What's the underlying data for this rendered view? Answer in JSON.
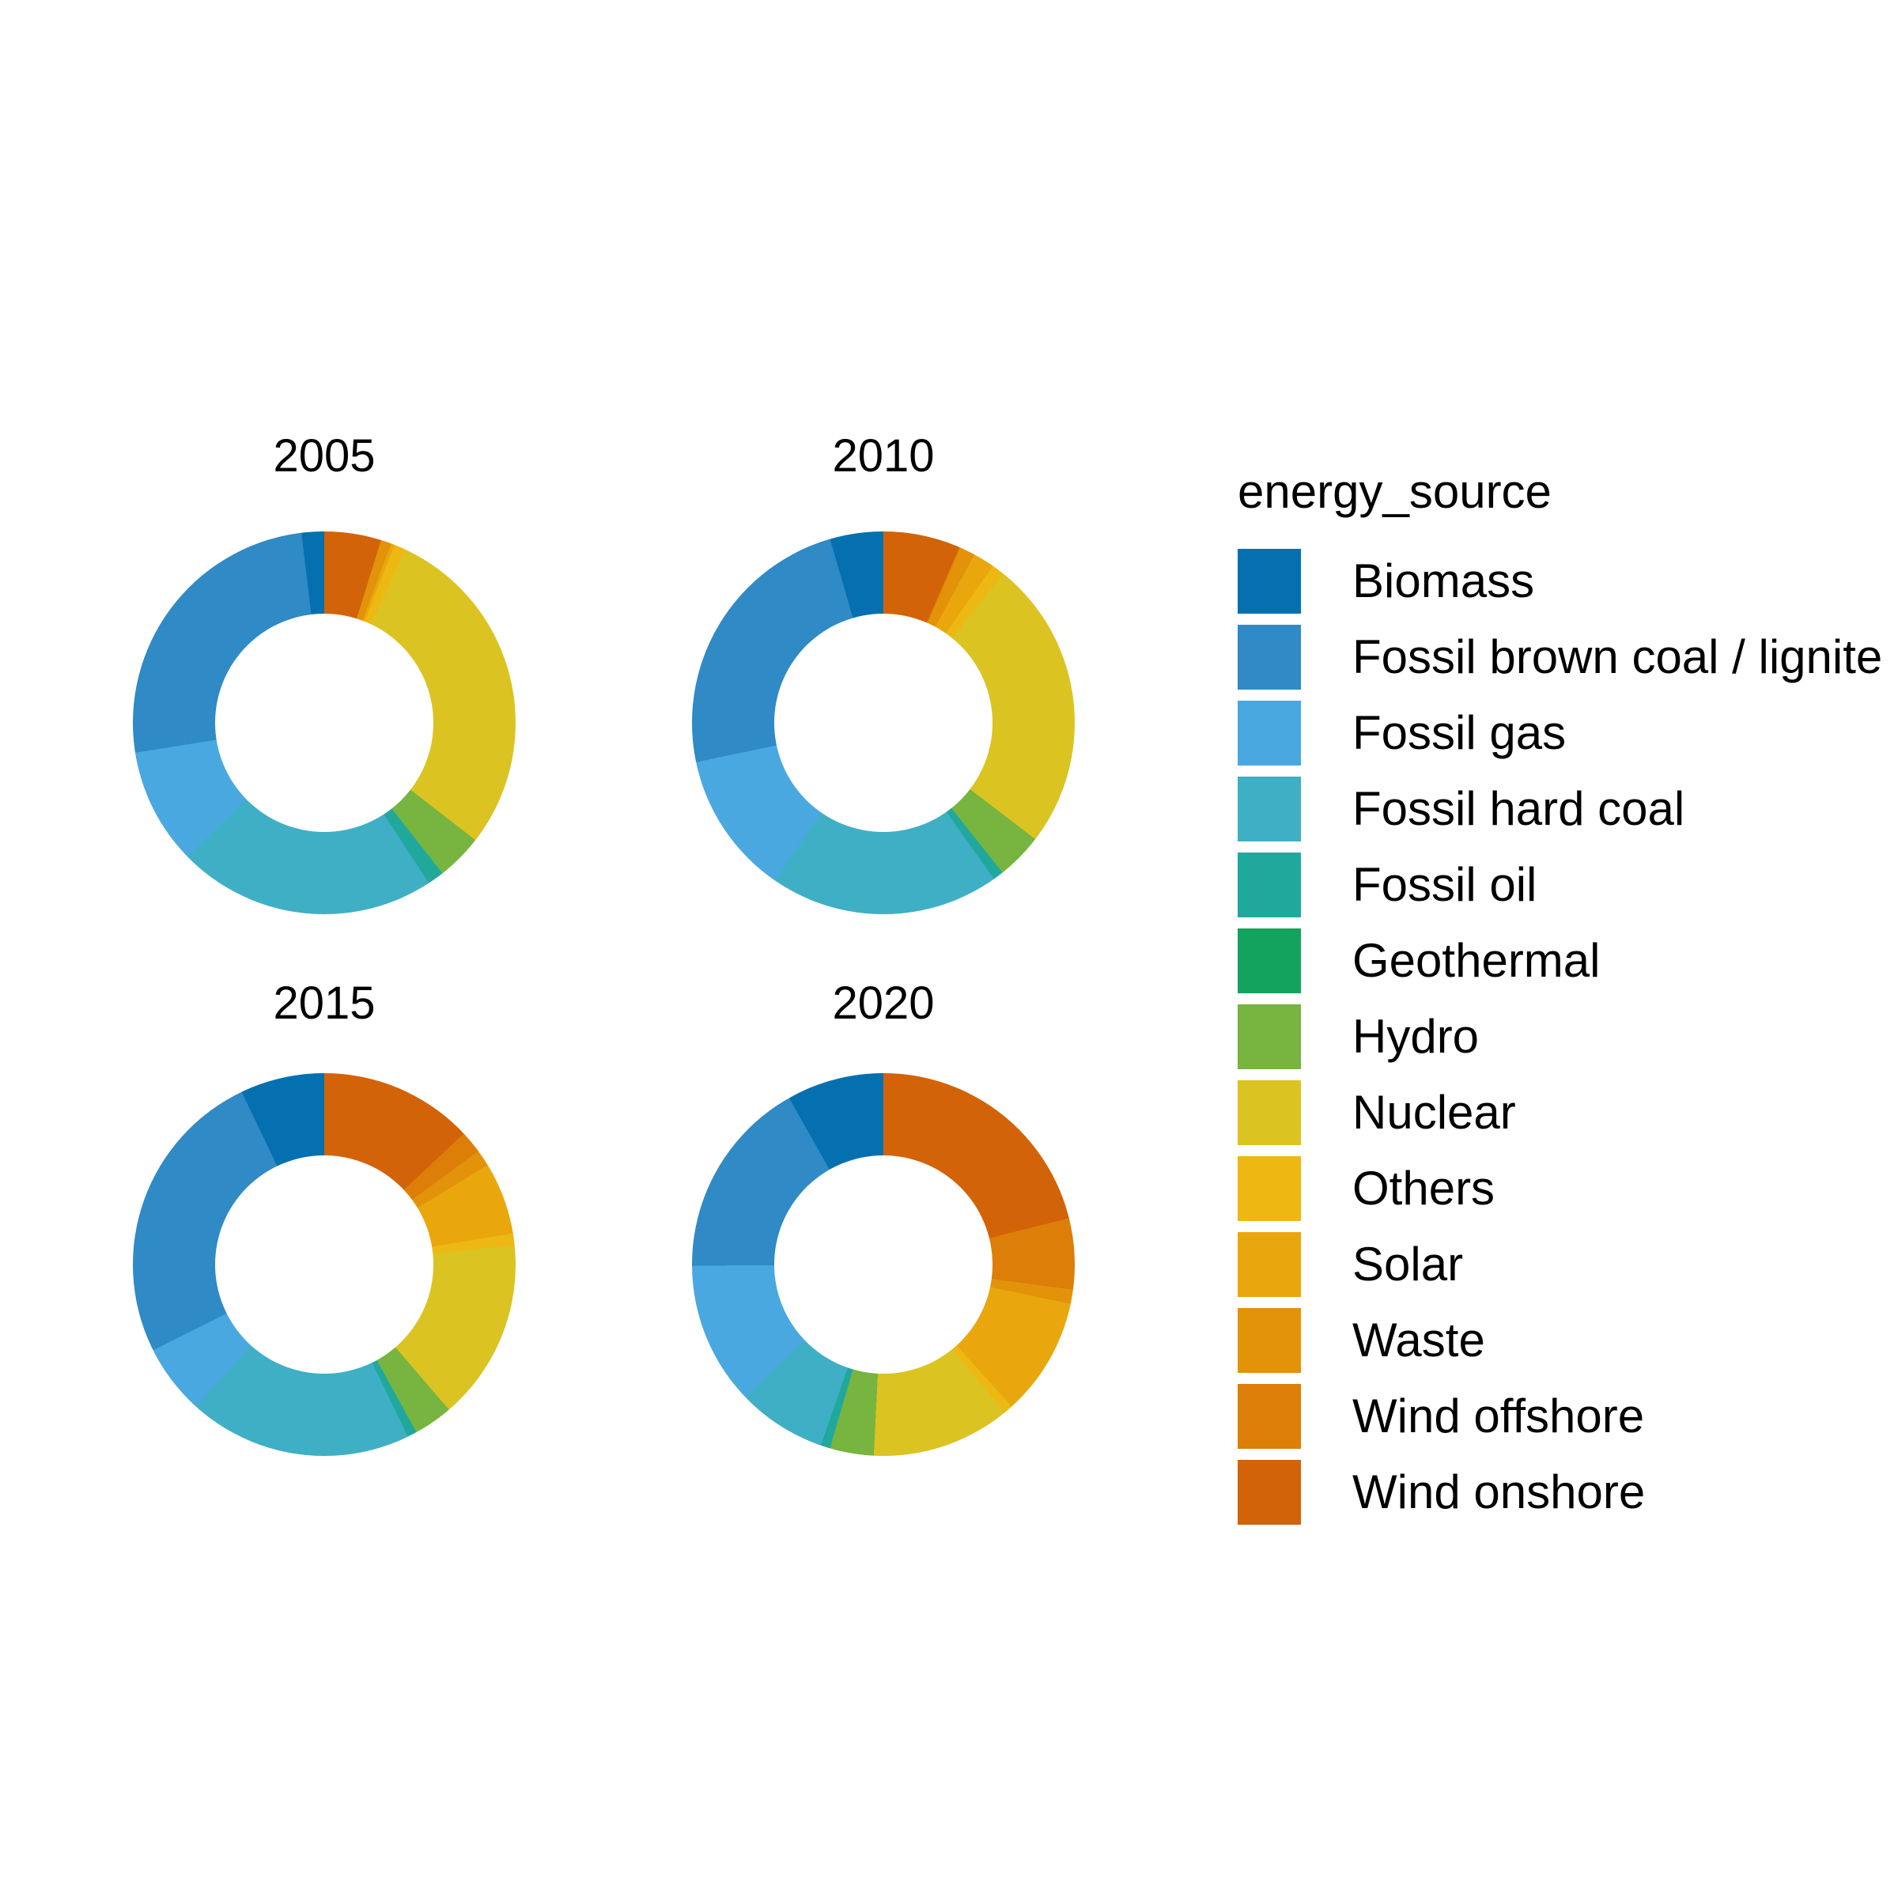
{
  "chart_data": {
    "type": "pie",
    "variant": "donut",
    "layout": "2x2 facet grid by year, legend at right",
    "background": "#ffffff",
    "text_color": "#000000",
    "legend_title": "energy_source",
    "legend_position": "right",
    "donut_inner_ratio": 0.57,
    "slice_order": "alphabetical categories running counterclockwise from 12 o'clock (last category starts clockwise at top)",
    "categories": [
      "Biomass",
      "Fossil brown coal / lignite",
      "Fossil gas",
      "Fossil hard coal",
      "Fossil oil",
      "Geothermal",
      "Hydro",
      "Nuclear",
      "Others",
      "Solar",
      "Waste",
      "Wind offshore",
      "Wind onshore"
    ],
    "colors": [
      "#0570b0",
      "#2f8ac5",
      "#4aa8e0",
      "#3fafc5",
      "#21a89d",
      "#13a35e",
      "#77b440",
      "#dbc321",
      "#eeb812",
      "#e9a70d",
      "#e2930a",
      "#dc7e07",
      "#d26308"
    ],
    "values_unit": "share of annual total, percent (estimated from chart pixels; no numeric labels shown)",
    "series": [
      {
        "name": "2005",
        "values": [
          1.9,
          25.6,
          9.8,
          21.9,
          1.4,
          0.0,
          3.9,
          28.5,
          1.0,
          0.3,
          0.9,
          0.0,
          4.8
        ]
      },
      {
        "name": "2010",
        "values": [
          4.5,
          23.8,
          12.1,
          19.4,
          0.9,
          0.0,
          3.9,
          24.6,
          1.1,
          1.8,
          1.3,
          0.1,
          6.5
        ]
      },
      {
        "name": "2015",
        "values": [
          7.1,
          25.3,
          5.9,
          18.9,
          0.8,
          0.0,
          3.3,
          15.3,
          1.0,
          6.1,
          1.4,
          1.9,
          13.0
        ]
      },
      {
        "name": "2020",
        "values": [
          8.2,
          16.9,
          12.1,
          7.5,
          0.8,
          0.0,
          3.7,
          11.7,
          0.8,
          10.0,
          1.2,
          6.0,
          21.1
        ]
      }
    ]
  }
}
